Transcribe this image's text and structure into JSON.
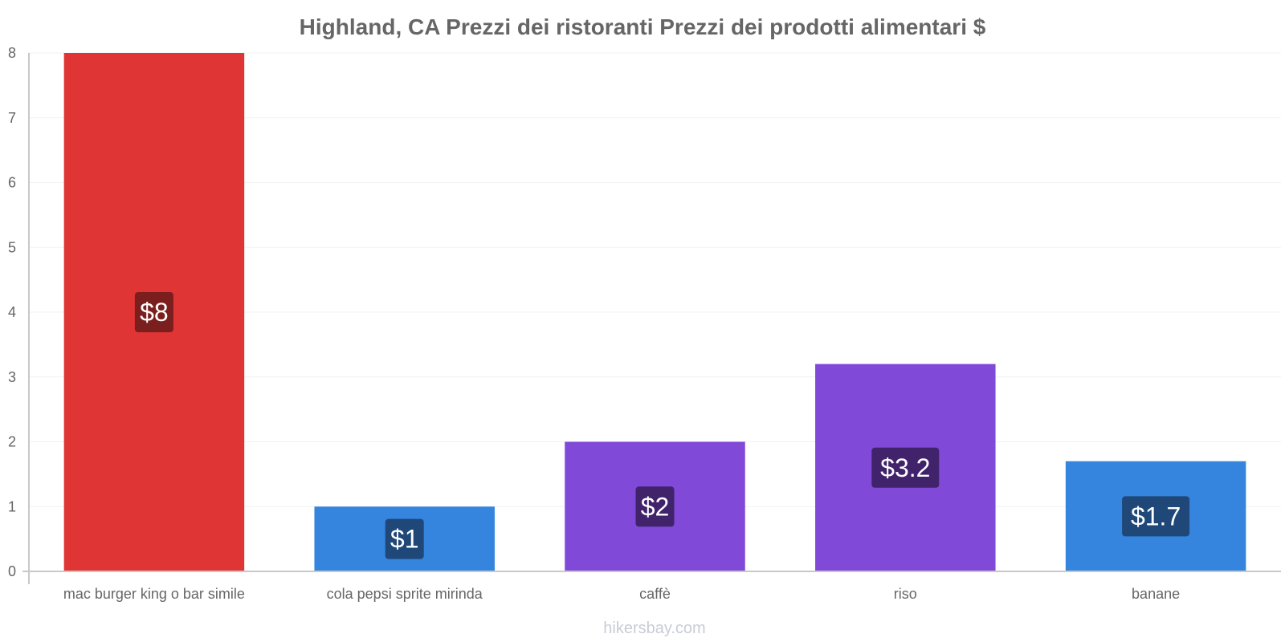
{
  "chart_data": {
    "type": "bar",
    "title": "Highland, CA Prezzi dei ristoranti Prezzi dei prodotti alimentari $",
    "categories": [
      "mac burger king o bar simile",
      "cola pepsi sprite mirinda",
      "caffè",
      "riso",
      "banane"
    ],
    "values": [
      8,
      1,
      2,
      3.2,
      1.7
    ],
    "data_labels": [
      "$8",
      "$1",
      "$2",
      "$3.2",
      "$1.7"
    ],
    "bar_colors": [
      "#e03535",
      "#3584de",
      "#8149d8",
      "#8149d8",
      "#3584de"
    ],
    "label_colors": [
      "#7a1e1e",
      "#1f4878",
      "#40236b",
      "#40236b",
      "#1f4878"
    ],
    "y_ticks": [
      "0",
      "1",
      "2",
      "3",
      "4",
      "5",
      "6",
      "7",
      "8"
    ],
    "ylim": [
      0,
      8
    ],
    "xlabel": "",
    "ylabel": "",
    "grid": true
  },
  "watermark": "hikersbay.com"
}
